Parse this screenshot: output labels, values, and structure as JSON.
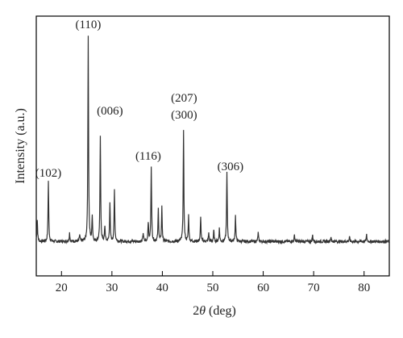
{
  "chart_data": {
    "type": "line",
    "title": "",
    "xlabel_prefix": "2",
    "xlabel_symbol": "θ",
    "xlabel_suffix": " (deg)",
    "ylabel": "Intensity (a.u.)",
    "xlim": [
      15,
      85
    ],
    "ylim": [
      0,
      100
    ],
    "xticks": [
      20,
      30,
      40,
      50,
      60,
      70,
      80
    ],
    "grid": false,
    "legend": "none",
    "series_color": "#333333",
    "baseline": 4,
    "series": [
      {
        "peaks": [
          {
            "x": 15.2,
            "y": 14
          },
          {
            "x": 17.4,
            "y": 32
          },
          {
            "x": 21.6,
            "y": 8
          },
          {
            "x": 23.6,
            "y": 7
          },
          {
            "x": 25.3,
            "y": 100
          },
          {
            "x": 26.1,
            "y": 16
          },
          {
            "x": 27.7,
            "y": 53
          },
          {
            "x": 28.6,
            "y": 11
          },
          {
            "x": 29.6,
            "y": 22
          },
          {
            "x": 30.5,
            "y": 28
          },
          {
            "x": 36.2,
            "y": 8
          },
          {
            "x": 37.2,
            "y": 13
          },
          {
            "x": 37.8,
            "y": 39
          },
          {
            "x": 39.2,
            "y": 19
          },
          {
            "x": 39.9,
            "y": 20
          },
          {
            "x": 44.2,
            "y": 55
          },
          {
            "x": 45.2,
            "y": 16
          },
          {
            "x": 47.6,
            "y": 15
          },
          {
            "x": 49.2,
            "y": 8
          },
          {
            "x": 50.2,
            "y": 9
          },
          {
            "x": 51.3,
            "y": 10
          },
          {
            "x": 52.8,
            "y": 36
          },
          {
            "x": 54.5,
            "y": 16
          },
          {
            "x": 59.0,
            "y": 8
          },
          {
            "x": 66.2,
            "y": 7
          },
          {
            "x": 69.8,
            "y": 7
          },
          {
            "x": 73.4,
            "y": 6
          },
          {
            "x": 77.1,
            "y": 6
          },
          {
            "x": 80.5,
            "y": 7
          }
        ]
      }
    ],
    "annotations": [
      {
        "text": "(102)",
        "x": 17.4,
        "y": 34
      },
      {
        "text": "(110)",
        "x": 25.3,
        "y": 103
      },
      {
        "text": "(006)",
        "x": 29.6,
        "y": 63
      },
      {
        "text": "(116)",
        "x": 37.2,
        "y": 42
      },
      {
        "text": "(207)",
        "x": 44.3,
        "y": 69
      },
      {
        "text": "(300)",
        "x": 44.3,
        "y": 61
      },
      {
        "text": "(306)",
        "x": 53.5,
        "y": 37
      }
    ]
  }
}
